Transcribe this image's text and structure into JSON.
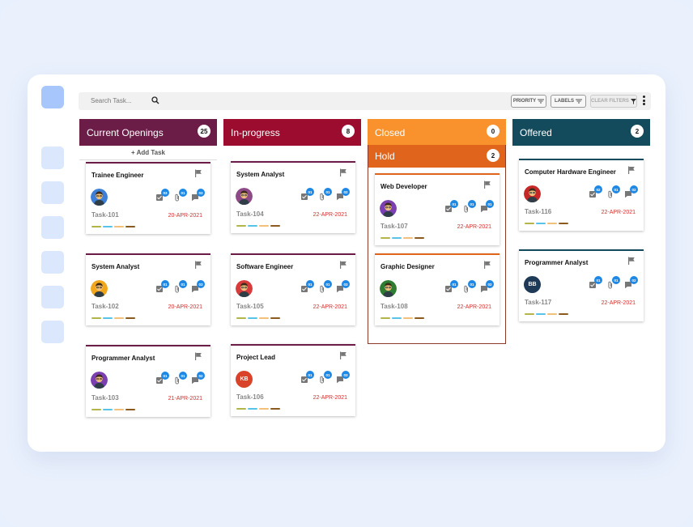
{
  "toolbar": {
    "search_label": "Search Task...",
    "priority_label": "PRIORITY",
    "labels_label": "LABELS",
    "clear_label": "CLEAR FILTERS"
  },
  "colors": {
    "label_strip": [
      "#b2b548",
      "#57c3e6",
      "#f2c07a",
      "#8b5a1e"
    ],
    "badge": "#1e88e5",
    "due_date": "#d32f2f"
  },
  "columns": [
    {
      "title": "Current Openings",
      "count": "25",
      "color": "#6b1d47",
      "add_task": "+ Add Task"
    },
    {
      "title": "In-progress",
      "count": "8",
      "color": "#9b0c2e"
    },
    {
      "title": "Closed",
      "count": "0",
      "color": "#f9922c"
    },
    {
      "title": "Hold",
      "count": "2",
      "color": "#e0641b"
    },
    {
      "title": "Offered",
      "count": "2",
      "color": "#144b5c"
    }
  ],
  "cards": [
    {
      "title": "Trainee Engineer",
      "id": "Task-101",
      "due": "20-APR-2021",
      "checks": "03",
      "attach": "01",
      "comments": "03",
      "avatar": "person-avatar-icon"
    },
    {
      "title": "System Analyst",
      "id": "Task-102",
      "due": "20-APR-2021",
      "checks": "01",
      "attach": "01",
      "comments": "03",
      "avatar": "person-avatar-icon"
    },
    {
      "title": "Programmer Analyst",
      "id": "Task-103",
      "due": "21-APR-2021",
      "checks": "01",
      "attach": "01",
      "comments": "02",
      "avatar": "person-avatar-icon"
    },
    {
      "title": "System Analyst",
      "id": "Task-104",
      "due": "22-APR-2021",
      "checks": "01",
      "attach": "01",
      "comments": "02",
      "avatar": "person-avatar-icon"
    },
    {
      "title": "Software Engineer",
      "id": "Task-105",
      "due": "22-APR-2021",
      "checks": "01",
      "attach": "01",
      "comments": "03",
      "avatar": "person-avatar-icon"
    },
    {
      "title": "Project Lead",
      "id": "Task-106",
      "due": "22-APR-2021",
      "checks": "01",
      "attach": "01",
      "comments": "03",
      "avatar_initials": "KB"
    },
    {
      "title": "Web Developer",
      "id": "Task-107",
      "due": "22-APR-2021",
      "checks": "01",
      "attach": "01",
      "comments": "01",
      "avatar": "person-avatar-icon"
    },
    {
      "title": "Graphic Designer",
      "id": "Task-108",
      "due": "22-APR-2021",
      "checks": "01",
      "attach": "01",
      "comments": "02",
      "avatar": "person-avatar-icon"
    },
    {
      "title": "Computer Hardware Engineer",
      "id": "Task-116",
      "due": "22-APR-2021",
      "checks": "02",
      "attach": "01",
      "comments": "02",
      "avatar": "person-avatar-icon"
    },
    {
      "title": "Programmer Analyst",
      "id": "Task-117",
      "due": "22-APR-2021",
      "checks": "01",
      "attach": "01",
      "comments": "02",
      "avatar_initials": "BB"
    }
  ]
}
